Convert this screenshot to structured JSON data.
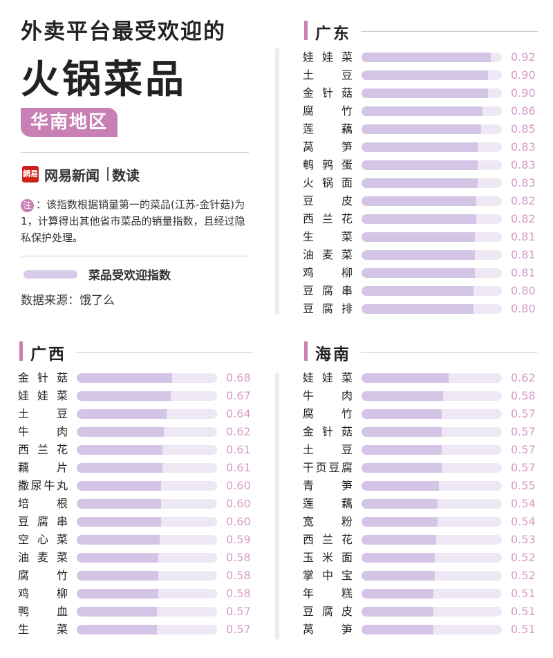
{
  "header": {
    "title_line1": "外卖平台最受欢迎的",
    "title_line2": "火锅菜品",
    "region": "华南地区"
  },
  "brand": {
    "logo_icon": "網易",
    "name": "网易新闻",
    "sub": "数读"
  },
  "note": {
    "badge": "注",
    "text": "：该指数根据销量第一的菜品(江苏-金针菇)为1，计算得出其他省市菜品的销量指数，且经过隐私保护处理。"
  },
  "legend": {
    "label": "菜品受欢迎指数"
  },
  "source": "数据来源：饿了么",
  "colors": {
    "accent": "#c77fb4",
    "bar_fill": "#d4c5e6",
    "bar_track": "#eee8f4",
    "value_text": "#d69ac8"
  },
  "chart_data": [
    {
      "type": "bar",
      "title": "广东",
      "categories": [
        "娃娃菜",
        "土豆",
        "金针菇",
        "腐竹",
        "莲藕",
        "莴笋",
        "鹌鹑蛋",
        "火锅面",
        "豆皮",
        "西兰花",
        "生菜",
        "油麦菜",
        "鸡柳",
        "豆腐串",
        "豆腐排"
      ],
      "values": [
        0.92,
        0.9,
        0.9,
        0.86,
        0.85,
        0.83,
        0.83,
        0.83,
        0.82,
        0.82,
        0.81,
        0.81,
        0.81,
        0.8,
        0.8
      ],
      "labels": [
        "0.92",
        "0.90",
        "0.90",
        "0.86",
        "0.85",
        "0.83",
        "0.83",
        "0.83",
        "0.82",
        "0.82",
        "0.81",
        "0.81",
        "0.81",
        "0.80",
        "0.80"
      ],
      "xlim": [
        0,
        1
      ]
    },
    {
      "type": "bar",
      "title": "广西",
      "categories": [
        "金针菇",
        "娃娃菜",
        "土豆",
        "牛肉",
        "西兰花",
        "藕片",
        "撒尿牛丸",
        "培根",
        "豆腐串",
        "空心菜",
        "油麦菜",
        "腐竹",
        "鸡柳",
        "鸭血",
        "生菜"
      ],
      "values": [
        0.68,
        0.67,
        0.64,
        0.62,
        0.61,
        0.61,
        0.6,
        0.6,
        0.6,
        0.59,
        0.58,
        0.58,
        0.58,
        0.57,
        0.57
      ],
      "labels": [
        "0.68",
        "0.67",
        "0.64",
        "0.62",
        "0.61",
        "0.61",
        "0.60",
        "0.60",
        "0.60",
        "0.59",
        "0.58",
        "0.58",
        "0.58",
        "0.57",
        "0.57"
      ],
      "xlim": [
        0,
        1
      ]
    },
    {
      "type": "bar",
      "title": "海南",
      "categories": [
        "娃娃菜",
        "牛肉",
        "腐竹",
        "金针菇",
        "土豆",
        "干页豆腐",
        "青笋",
        "莲藕",
        "宽粉",
        "西兰花",
        "玉米面",
        "掌中宝",
        "年糕",
        "豆腐皮",
        "莴笋"
      ],
      "values": [
        0.62,
        0.58,
        0.57,
        0.57,
        0.57,
        0.57,
        0.55,
        0.54,
        0.54,
        0.53,
        0.52,
        0.52,
        0.51,
        0.51,
        0.51
      ],
      "labels": [
        "0.62",
        "0.58",
        "0.57",
        "0.57",
        "0.57",
        "0.57",
        "0.55",
        "0.54",
        "0.54",
        "0.53",
        "0.52",
        "0.52",
        "0.51",
        "0.51",
        "0.51"
      ],
      "xlim": [
        0,
        1
      ]
    }
  ]
}
